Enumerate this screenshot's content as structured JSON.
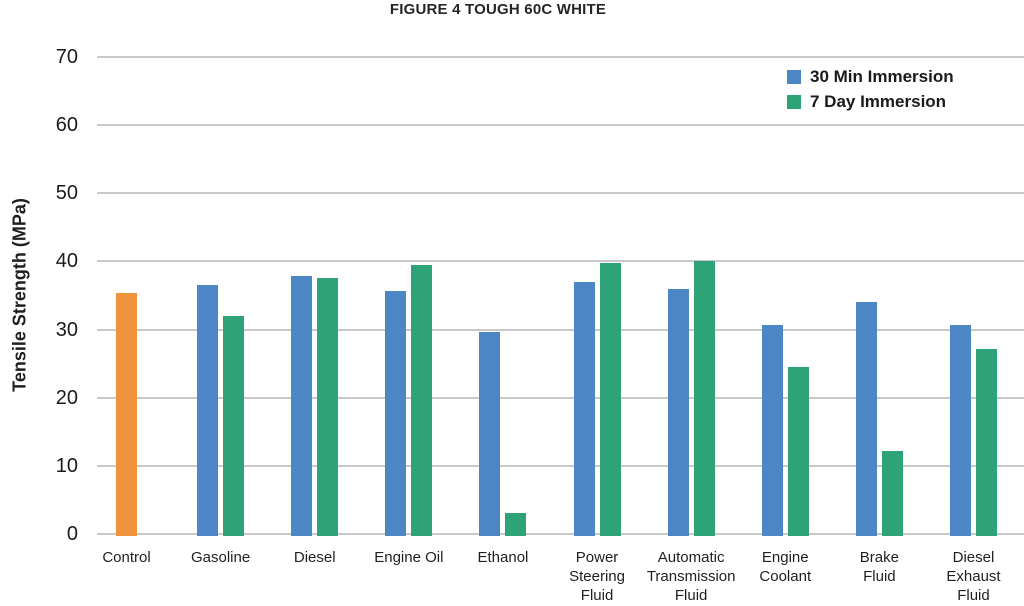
{
  "chart_data": {
    "type": "bar",
    "title": "FIGURE 4 TOUGH 60C WHITE",
    "xlabel": "",
    "ylabel": "Tensile Strength (MPa)",
    "ylim": [
      0,
      70
    ],
    "yticks": [
      0,
      10,
      20,
      30,
      40,
      50,
      60,
      70
    ],
    "grid": "horizontal-only",
    "legend_position": "top-right-inside",
    "categories": [
      "Control",
      "Gasoline",
      "Diesel",
      "Engine Oil",
      "Ethanol",
      "Power Steering Fluid",
      "Automatic Transmission Fluid",
      "Engine Coolant",
      "Brake Fluid",
      "Diesel Exhaust Fluid"
    ],
    "category_label_lines": [
      [
        "Control"
      ],
      [
        "Gasoline"
      ],
      [
        "Diesel"
      ],
      [
        "Engine Oil"
      ],
      [
        "Ethanol"
      ],
      [
        "Power",
        "Steering",
        "Fluid"
      ],
      [
        "Automatic",
        "Transmission",
        "Fluid"
      ],
      [
        "Engine",
        "Coolant"
      ],
      [
        "Brake",
        "Fluid"
      ],
      [
        "Diesel",
        "Exhaust",
        "Fluid"
      ]
    ],
    "control_bar": {
      "category": "Control",
      "value": 35.3,
      "color": "#EF943D"
    },
    "series": [
      {
        "name": "30 Min Immersion",
        "color": "#4C86C4",
        "values": [
          null,
          36.6,
          37.8,
          35.7,
          29.7,
          37.0,
          35.9,
          30.6,
          34.1,
          30.6
        ]
      },
      {
        "name": "7 Day Immersion",
        "color": "#2EA377",
        "values": [
          null,
          32.0,
          37.5,
          39.5,
          3.1,
          39.8,
          40.0,
          24.5,
          12.2,
          27.2
        ]
      }
    ]
  },
  "colors": {
    "gridline": "#c9c9c9",
    "text": "#1f1f1f"
  }
}
